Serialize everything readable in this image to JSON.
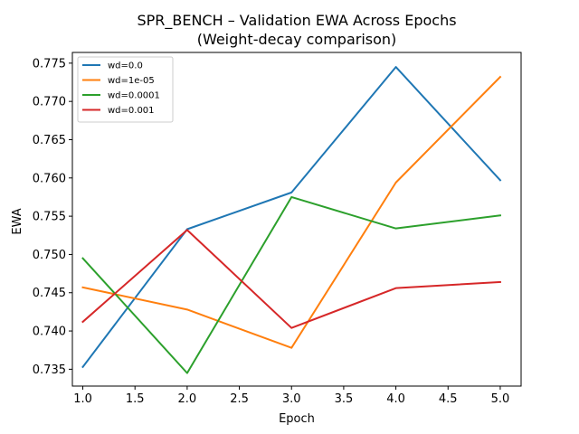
{
  "chart_data": {
    "type": "line",
    "title": "SPR_BENCH – Validation EWA Across Epochs",
    "subtitle": "(Weight-decay comparison)",
    "xlabel": "Epoch",
    "ylabel": "EWA",
    "x": [
      1.0,
      2.0,
      3.0,
      4.0,
      5.0
    ],
    "xlim": [
      0.9,
      5.2
    ],
    "ylim": [
      0.7328,
      0.7764
    ],
    "xticks": [
      1.0,
      1.5,
      2.0,
      2.5,
      3.0,
      3.5,
      4.0,
      4.5,
      5.0
    ],
    "xtick_labels": [
      "1.0",
      "1.5",
      "2.0",
      "2.5",
      "3.0",
      "3.5",
      "4.0",
      "4.5",
      "5.0"
    ],
    "yticks": [
      0.735,
      0.74,
      0.745,
      0.75,
      0.755,
      0.76,
      0.765,
      0.77,
      0.775
    ],
    "ytick_labels": [
      "0.735",
      "0.740",
      "0.745",
      "0.750",
      "0.755",
      "0.760",
      "0.765",
      "0.770",
      "0.775"
    ],
    "grid": false,
    "legend_position": "top-left",
    "series": [
      {
        "name": "wd=0.0",
        "color": "#1f77b4",
        "values": [
          0.7353,
          0.7533,
          0.7581,
          0.7745,
          0.7597
        ]
      },
      {
        "name": "wd=1e-05",
        "color": "#ff7f0e",
        "values": [
          0.7457,
          0.7428,
          0.7378,
          0.7594,
          0.7732
        ]
      },
      {
        "name": "wd=0.0001",
        "color": "#2ca02c",
        "values": [
          0.7495,
          0.7345,
          0.7575,
          0.7534,
          0.7551
        ]
      },
      {
        "name": "wd=0.001",
        "color": "#d62728",
        "values": [
          0.7412,
          0.7532,
          0.7404,
          0.7456,
          0.7464
        ]
      }
    ]
  }
}
